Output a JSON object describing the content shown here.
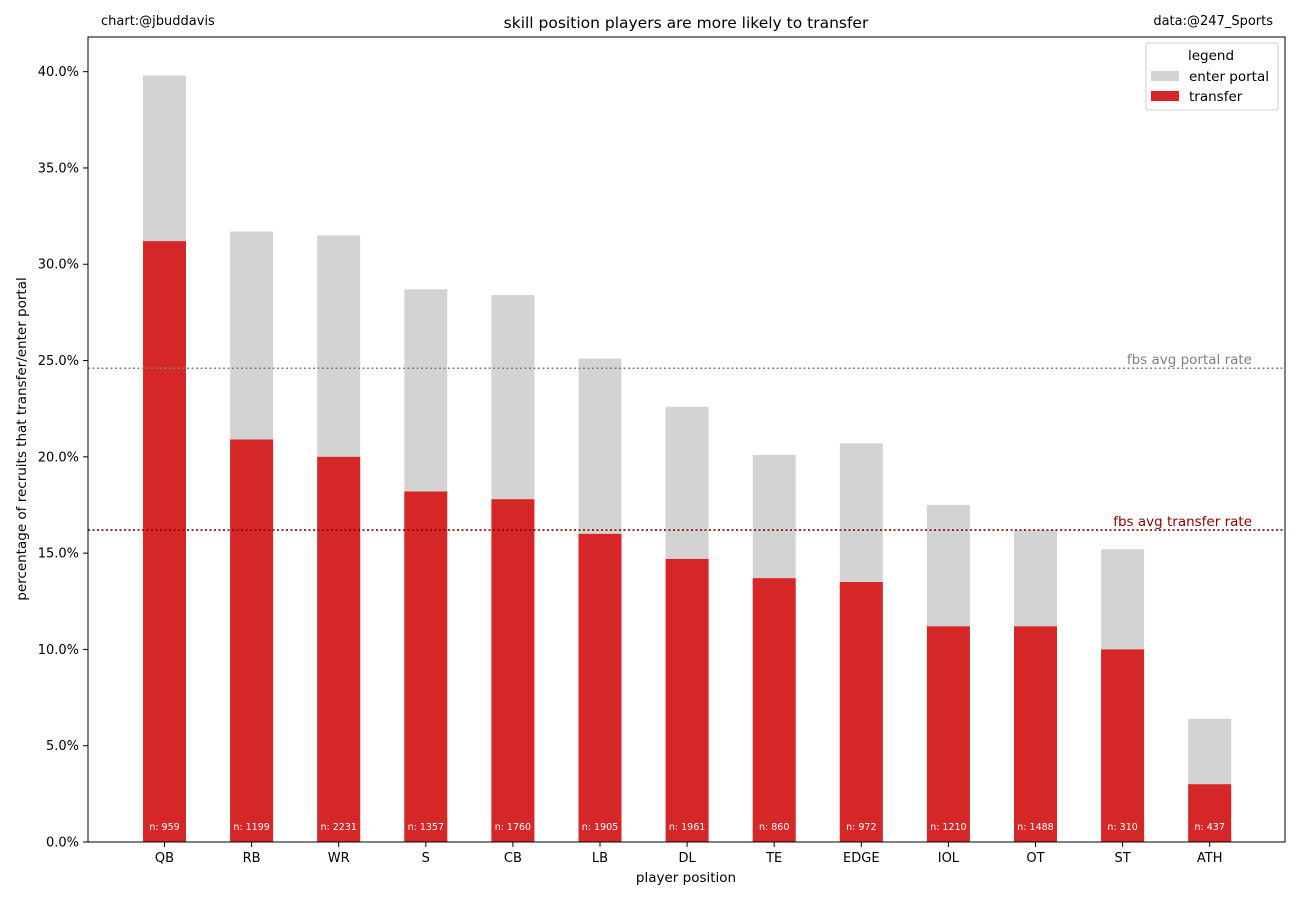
{
  "header": {
    "credit_left": "chart:@jbuddavis",
    "credit_right": "data:@247_Sports"
  },
  "chart_data": {
    "type": "bar",
    "stacked_overlay": true,
    "title": "skill position players are more likely to transfer",
    "xlabel": "player position",
    "ylabel": "percentage of recruits that transfer/enter portal",
    "ylim": [
      0,
      41.8
    ],
    "yticks": [
      0,
      5,
      10,
      15,
      20,
      25,
      30,
      35,
      40
    ],
    "ytick_format": "percent_1dp",
    "categories": [
      "QB",
      "RB",
      "WR",
      "S",
      "CB",
      "LB",
      "DL",
      "TE",
      "EDGE",
      "IOL",
      "OT",
      "ST",
      "ATH"
    ],
    "series": [
      {
        "name": "enter portal",
        "color": "#d3d3d3",
        "values": [
          39.8,
          31.7,
          31.5,
          28.7,
          28.4,
          25.1,
          22.6,
          20.1,
          20.7,
          17.5,
          16.2,
          15.2,
          6.4
        ]
      },
      {
        "name": "transfer",
        "color": "#d62728",
        "values": [
          31.2,
          20.9,
          20.0,
          18.2,
          17.8,
          16.0,
          14.7,
          13.7,
          13.5,
          11.2,
          11.2,
          10.0,
          3.0
        ]
      }
    ],
    "bar_labels": [
      "n: 959",
      "n: 1199",
      "n: 2231",
      "n: 1357",
      "n: 1760",
      "n: 1905",
      "n: 1961",
      "n: 860",
      "n: 972",
      "n: 1210",
      "n: 1488",
      "n: 310",
      "n: 437"
    ],
    "reference_lines": [
      {
        "label": "fbs avg portal rate",
        "value": 24.6,
        "color": "#808080"
      },
      {
        "label": "fbs avg transfer rate",
        "value": 16.2,
        "color": "#8b0000"
      }
    ],
    "legend": {
      "title": "legend",
      "position": "top-right"
    },
    "grid": false
  }
}
